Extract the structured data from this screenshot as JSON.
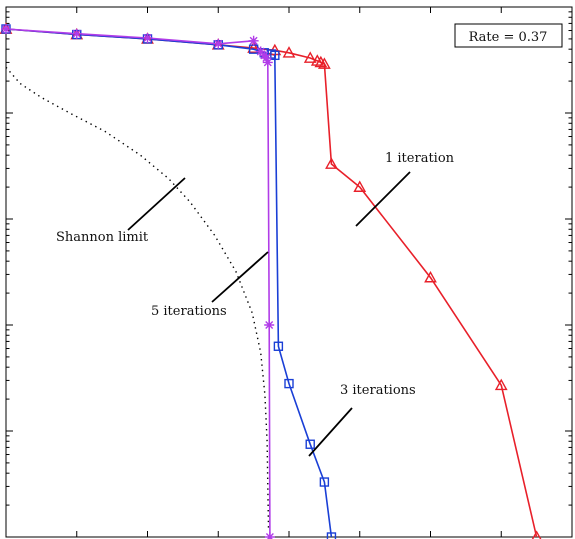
{
  "chart_data": {
    "type": "line",
    "title": "",
    "xlabel": "",
    "ylabel": "",
    "x_scale": "linear",
    "y_scale": "log",
    "xlim": [
      0,
      8
    ],
    "ylim": [
      1e-05,
      1
    ],
    "x_ticks": [
      1,
      2,
      3,
      4,
      5,
      6,
      7,
      8
    ],
    "y_ticks": [
      1,
      0.1,
      0.01,
      0.001,
      0.0001,
      1e-05
    ],
    "grid": false,
    "legend": "none",
    "rate_box": {
      "text": "Rate = 0.37",
      "position": "top-right"
    },
    "series": [
      {
        "name": "Shannon limit",
        "color": "#000000",
        "style": "dotted",
        "marker": "none",
        "x": [
          0.0,
          0.2,
          0.5,
          0.9,
          1.4,
          1.9,
          2.3,
          2.6,
          2.95,
          3.25,
          3.48,
          3.6,
          3.66,
          3.69,
          3.7,
          3.71
        ],
        "y": [
          0.27,
          0.19,
          0.14,
          0.1,
          0.067,
          0.04,
          0.024,
          0.0145,
          0.007,
          0.0032,
          0.0013,
          0.00055,
          0.00022,
          8e-05,
          3e-05,
          1.2e-05
        ]
      },
      {
        "name": "1 iteration",
        "color": "#e8202a",
        "style": "solid",
        "marker": "triangle",
        "x": [
          0.0,
          1.0,
          2.0,
          3.0,
          3.5,
          3.8,
          4.0,
          4.3,
          4.4,
          4.45,
          4.5,
          4.6,
          5.0,
          6.0,
          7.0,
          7.5
        ],
        "y": [
          0.62,
          0.55,
          0.5,
          0.44,
          0.41,
          0.39,
          0.37,
          0.33,
          0.31,
          0.3,
          0.29,
          0.033,
          0.02,
          0.0028,
          0.00027,
          1e-05
        ]
      },
      {
        "name": "3 iterations",
        "color": "#1a3fd6",
        "style": "solid",
        "marker": "square",
        "x": [
          0.0,
          1.0,
          2.0,
          3.0,
          3.5,
          3.65,
          3.75,
          3.8,
          3.85,
          4.0,
          4.3,
          4.5,
          4.6
        ],
        "y": [
          0.62,
          0.55,
          0.5,
          0.44,
          0.4,
          0.37,
          0.36,
          0.35,
          0.00063,
          0.00028,
          7.5e-05,
          3.3e-05,
          1e-05
        ]
      },
      {
        "name": "5 iterations",
        "color": "#b13ce8",
        "style": "solid",
        "marker": "star",
        "x": [
          0.0,
          1.0,
          2.0,
          3.0,
          3.5,
          3.6,
          3.65,
          3.68,
          3.7,
          3.72,
          3.73
        ],
        "y": [
          0.62,
          0.56,
          0.51,
          0.45,
          0.48,
          0.38,
          0.35,
          0.33,
          0.3,
          0.001,
          1e-05
        ]
      }
    ],
    "annotations": [
      {
        "text": "1 iteration"
      },
      {
        "text": "3 iterations"
      },
      {
        "text": "5 iterations"
      },
      {
        "text": "Shannon limit"
      }
    ]
  }
}
